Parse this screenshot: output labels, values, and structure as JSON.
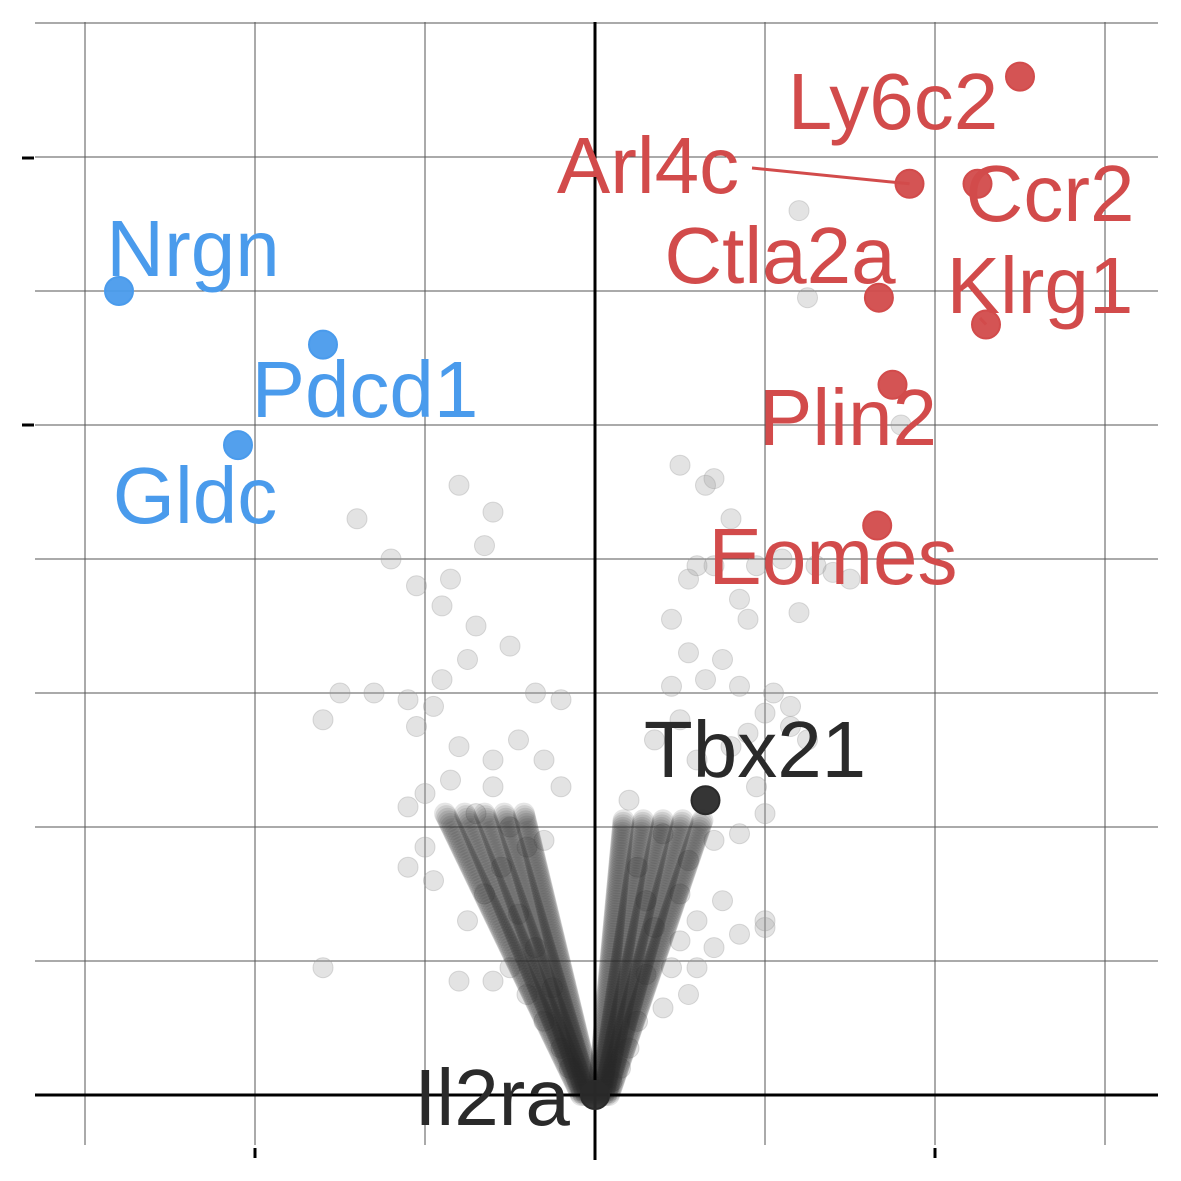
{
  "chart_data": {
    "type": "scatter",
    "title": "",
    "xlabel": "",
    "ylabel": "",
    "xlim": [
      -3.0,
      3.3
    ],
    "ylim": [
      -0.2,
      8.3
    ],
    "grid": true,
    "colors": {
      "up": "#d24b4b",
      "down": "#4a9bec",
      "neutral": "#2a2a2a",
      "background_points": "#9a9a9a"
    },
    "highlighted_points": [
      {
        "gene": "Ly6c2",
        "x": 2.5,
        "y": 7.6,
        "group": "up"
      },
      {
        "gene": "Arl4c",
        "x": 1.85,
        "y": 6.8,
        "group": "up"
      },
      {
        "gene": "Ccr2",
        "x": 2.25,
        "y": 6.8,
        "group": "up"
      },
      {
        "gene": "Ctla2a",
        "x": 1.67,
        "y": 5.95,
        "group": "up"
      },
      {
        "gene": "Klrg1",
        "x": 2.3,
        "y": 5.75,
        "group": "up"
      },
      {
        "gene": "Plin2",
        "x": 1.75,
        "y": 5.3,
        "group": "up"
      },
      {
        "gene": "Eomes",
        "x": 1.66,
        "y": 4.25,
        "group": "up"
      },
      {
        "gene": "Nrgn",
        "x": -2.8,
        "y": 6.0,
        "group": "down"
      },
      {
        "gene": "Pdcd1",
        "x": -1.6,
        "y": 5.6,
        "group": "down"
      },
      {
        "gene": "Gldc",
        "x": -2.1,
        "y": 4.85,
        "group": "down"
      },
      {
        "gene": "Tbx21",
        "x": 0.65,
        "y": 2.2,
        "group": "neutral"
      },
      {
        "gene": "Il2ra",
        "x": 0.0,
        "y": 0.0,
        "group": "neutral"
      }
    ],
    "background_points": [
      [
        1.2,
        6.6
      ],
      [
        1.25,
        5.95
      ],
      [
        1.8,
        5.0
      ],
      [
        0.5,
        4.7
      ],
      [
        0.65,
        4.55
      ],
      [
        0.7,
        4.6
      ],
      [
        0.8,
        4.3
      ],
      [
        0.6,
        3.95
      ],
      [
        0.7,
        3.95
      ],
      [
        1.1,
        4.0
      ],
      [
        1.4,
        3.9
      ],
      [
        0.85,
        3.7
      ],
      [
        0.95,
        3.95
      ],
      [
        1.3,
        3.95
      ],
      [
        1.5,
        3.85
      ],
      [
        0.55,
        3.85
      ],
      [
        0.9,
        3.55
      ],
      [
        1.2,
        3.6
      ],
      [
        0.75,
        3.25
      ],
      [
        0.45,
        3.55
      ],
      [
        0.55,
        3.3
      ],
      [
        0.65,
        3.1
      ],
      [
        0.85,
        3.05
      ],
      [
        1.05,
        3.0
      ],
      [
        1.15,
        2.9
      ],
      [
        1.25,
        2.65
      ],
      [
        0.9,
        2.7
      ],
      [
        1.0,
        2.85
      ],
      [
        1.15,
        2.75
      ],
      [
        0.45,
        3.05
      ],
      [
        0.5,
        2.8
      ],
      [
        0.35,
        2.65
      ],
      [
        0.6,
        2.5
      ],
      [
        0.8,
        2.6
      ],
      [
        0.95,
        2.3
      ],
      [
        1.0,
        2.1
      ],
      [
        0.85,
        1.95
      ],
      [
        0.7,
        1.9
      ],
      [
        0.55,
        1.75
      ],
      [
        0.4,
        1.95
      ],
      [
        0.2,
        2.2
      ],
      [
        0.25,
        1.7
      ],
      [
        0.3,
        1.45
      ],
      [
        0.35,
        1.25
      ],
      [
        0.5,
        1.5
      ],
      [
        0.6,
        1.3
      ],
      [
        0.7,
        1.1
      ],
      [
        0.75,
        1.45
      ],
      [
        0.85,
        1.2
      ],
      [
        1.0,
        1.25
      ],
      [
        1.0,
        1.3
      ],
      [
        0.5,
        1.15
      ],
      [
        0.45,
        0.95
      ],
      [
        0.55,
        0.75
      ],
      [
        0.6,
        0.95
      ],
      [
        0.4,
        0.65
      ],
      [
        0.3,
        0.9
      ],
      [
        0.25,
        0.55
      ],
      [
        0.2,
        0.35
      ],
      [
        0.15,
        0.2
      ],
      [
        0.1,
        0.1
      ],
      [
        -0.8,
        4.55
      ],
      [
        -0.6,
        4.35
      ],
      [
        -0.65,
        4.1
      ],
      [
        -0.85,
        3.85
      ],
      [
        -1.05,
        3.8
      ],
      [
        -1.2,
        4.0
      ],
      [
        -1.4,
        4.3
      ],
      [
        -0.9,
        3.65
      ],
      [
        -0.7,
        3.5
      ],
      [
        -0.75,
        3.25
      ],
      [
        -0.5,
        3.35
      ],
      [
        -0.35,
        3.0
      ],
      [
        -0.2,
        2.95
      ],
      [
        -0.9,
        3.1
      ],
      [
        -1.1,
        2.95
      ],
      [
        -1.3,
        3.0
      ],
      [
        -1.5,
        3.0
      ],
      [
        -1.6,
        2.8
      ],
      [
        -1.05,
        2.75
      ],
      [
        -0.95,
        2.9
      ],
      [
        -0.8,
        2.6
      ],
      [
        -0.6,
        2.5
      ],
      [
        -0.45,
        2.65
      ],
      [
        -0.3,
        2.5
      ],
      [
        -0.2,
        2.3
      ],
      [
        -0.85,
        2.35
      ],
      [
        -1.0,
        2.25
      ],
      [
        -1.1,
        2.15
      ],
      [
        -0.7,
        2.1
      ],
      [
        -0.6,
        2.3
      ],
      [
        -0.5,
        2.0
      ],
      [
        -0.4,
        1.85
      ],
      [
        -0.3,
        1.9
      ],
      [
        -0.55,
        1.7
      ],
      [
        -0.65,
        1.5
      ],
      [
        -0.75,
        1.3
      ],
      [
        -0.95,
        1.6
      ],
      [
        -1.0,
        1.85
      ],
      [
        -1.1,
        1.7
      ],
      [
        -0.45,
        1.35
      ],
      [
        -0.35,
        1.1
      ],
      [
        -0.5,
        0.95
      ],
      [
        -0.4,
        0.75
      ],
      [
        -0.3,
        0.55
      ],
      [
        -0.2,
        0.35
      ],
      [
        -0.15,
        0.2
      ],
      [
        -1.6,
        0.95
      ],
      [
        -0.8,
        0.85
      ],
      [
        -0.6,
        0.85
      ],
      [
        -0.25,
        0.8
      ]
    ],
    "dense_regions": [
      {
        "x_top": -0.65,
        "y_top": 2.1,
        "x_bottom": -0.05,
        "y_bottom": 0.0
      },
      {
        "x_top": 0.4,
        "y_top": 2.05,
        "x_bottom": 0.05,
        "y_bottom": 0.0
      }
    ]
  }
}
